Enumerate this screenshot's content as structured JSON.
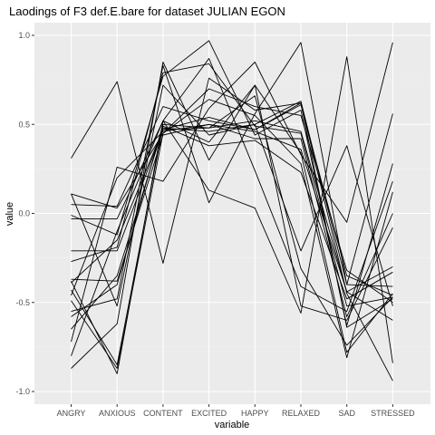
{
  "chart_data": {
    "type": "line",
    "title": "Laodings of F3 def.E.bare for dataset JULIAN EGON",
    "xlabel": "variable",
    "ylabel": "value",
    "categories": [
      "ANGRY",
      "ANXIOUS",
      "CONTENT",
      "EXCITED",
      "HAPPY",
      "RELAXED",
      "SAD",
      "STRESSED"
    ],
    "yticks": [
      "-1.0",
      "-0.5",
      "0.0",
      "0.5",
      "1.0"
    ],
    "ylim": [
      -1.1,
      1.05
    ],
    "grid": true,
    "colors": {
      "panel": "#ebebeb",
      "grid": "#ffffff",
      "line": "#000000"
    },
    "series": [
      {
        "values": [
          0.31,
          0.74,
          -0.28,
          0.76,
          0.58,
          0.62,
          -0.45,
          -0.94
        ]
      },
      {
        "values": [
          0.11,
          0.03,
          0.45,
          0.7,
          0.6,
          0.55,
          -0.32,
          -0.5
        ]
      },
      {
        "values": [
          -0.87,
          -0.62,
          0.85,
          0.3,
          0.72,
          0.34,
          -0.78,
          -0.45
        ]
      },
      {
        "values": [
          -0.72,
          0.26,
          0.18,
          0.59,
          0.85,
          0.33,
          -0.05,
          0.96
        ]
      },
      {
        "values": [
          -0.55,
          -0.48,
          0.83,
          0.06,
          0.56,
          0.96,
          -0.4,
          -0.41
        ]
      },
      {
        "values": [
          -0.38,
          -0.9,
          0.52,
          0.13,
          0.03,
          -0.56,
          0.88,
          -0.84
        ]
      },
      {
        "values": [
          -0.01,
          -0.12,
          0.77,
          0.97,
          0.44,
          0.58,
          -0.63,
          0.28
        ]
      },
      {
        "values": [
          -0.03,
          -0.03,
          0.52,
          0.87,
          0.24,
          -0.41,
          -0.55,
          0.18
        ]
      },
      {
        "values": [
          -0.21,
          -0.21,
          0.47,
          0.54,
          0.47,
          0.62,
          -0.64,
          -0.48
        ]
      },
      {
        "values": [
          0.11,
          -0.52,
          0.72,
          0.44,
          0.5,
          0.63,
          -0.4,
          0.56
        ]
      },
      {
        "values": [
          -0.27,
          -0.19,
          0.79,
          0.84,
          0.49,
          0.45,
          -0.52,
          -0.47
        ]
      },
      {
        "values": [
          -0.43,
          -0.85,
          0.49,
          0.38,
          0.41,
          0.23,
          -0.48,
          -0.33
        ]
      },
      {
        "values": [
          -0.65,
          -0.35,
          0.48,
          0.46,
          0.5,
          -0.21,
          0.38,
          -0.52
        ]
      },
      {
        "values": [
          -0.39,
          -0.15,
          0.47,
          0.48,
          0.66,
          -0.31,
          -0.74,
          -0.47
        ]
      },
      {
        "values": [
          -0.49,
          -0.87,
          0.45,
          0.64,
          0.55,
          0.28,
          -0.81,
          0.12
        ]
      },
      {
        "values": [
          -0.58,
          -0.4,
          0.5,
          0.48,
          0.52,
          0.46,
          -0.44,
          -0.3
        ]
      },
      {
        "values": [
          -0.8,
          -0.1,
          0.52,
          0.4,
          0.72,
          -0.52,
          -0.6,
          -0.08
        ]
      },
      {
        "values": [
          -0.37,
          -0.38,
          0.44,
          0.5,
          0.42,
          0.42,
          -0.58,
          0.0
        ]
      },
      {
        "values": [
          -0.46,
          0.2,
          0.46,
          0.5,
          0.46,
          0.36,
          -0.44,
          -0.6
        ]
      },
      {
        "values": [
          0.05,
          0.04,
          0.6,
          0.52,
          0.47,
          0.61,
          -0.35,
          -0.46
        ]
      }
    ]
  }
}
